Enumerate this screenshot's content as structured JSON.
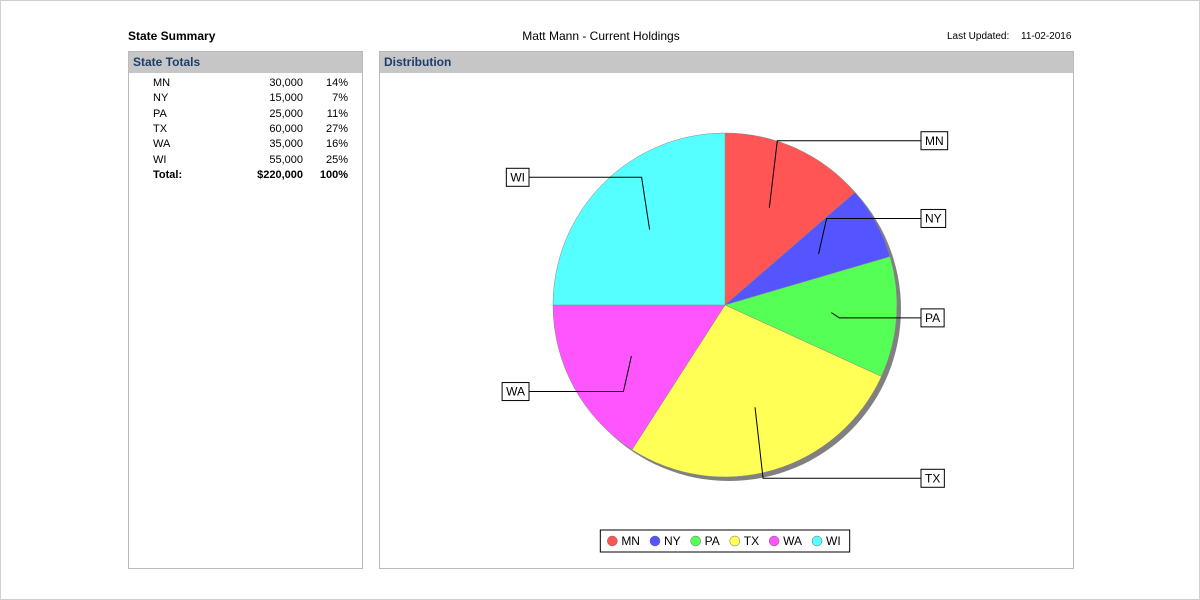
{
  "header": {
    "title": "State Summary",
    "subtitle": "Matt Mann - Current Holdings",
    "updated_label": "Last Updated:",
    "updated": "11-02-2016"
  },
  "table": {
    "title": "State Totals",
    "rows": [
      [
        "MN",
        "30,000",
        "14%"
      ],
      [
        "NY",
        "15,000",
        "7%"
      ],
      [
        "PA",
        "25,000",
        "11%"
      ],
      [
        "TX",
        "60,000",
        "27%"
      ],
      [
        "WA",
        "35,000",
        "16%"
      ],
      [
        "WI",
        "55,000",
        "25%"
      ]
    ],
    "total": [
      "Total:",
      "$220,000",
      "100%"
    ]
  },
  "chart_data": {
    "type": "pie",
    "title": "Distribution",
    "categories": [
      "MN",
      "NY",
      "PA",
      "TX",
      "WA",
      "WI"
    ],
    "values": [
      30000,
      15000,
      25000,
      60000,
      35000,
      55000
    ],
    "colors": [
      "#ff5555",
      "#5555ff",
      "#55ff55",
      "#ffff55",
      "#ff55ff",
      "#55ffff"
    ]
  }
}
